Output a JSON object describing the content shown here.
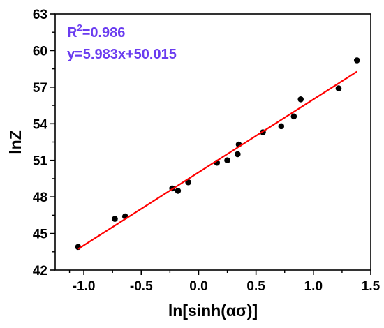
{
  "chart_data": {
    "type": "scatter",
    "xlabel": "ln[sinh(ασ)]",
    "ylabel": "lnZ",
    "xlim": [
      -1.25,
      1.5
    ],
    "ylim": [
      42,
      63
    ],
    "xticks": [
      -1.0,
      -0.5,
      0.0,
      0.5,
      1.0,
      1.5
    ],
    "xtick_labels": [
      "-1.0",
      "-0.5",
      "0.0",
      "0.5",
      "1.0",
      "1.5"
    ],
    "yticks": [
      42,
      45,
      48,
      51,
      54,
      57,
      60,
      63
    ],
    "ytick_labels": [
      "42",
      "45",
      "48",
      "51",
      "54",
      "57",
      "60",
      "63"
    ],
    "grid": false,
    "points": [
      {
        "x": -1.05,
        "y": 43.9
      },
      {
        "x": -0.73,
        "y": 46.2
      },
      {
        "x": -0.64,
        "y": 46.4
      },
      {
        "x": -0.23,
        "y": 48.7
      },
      {
        "x": -0.18,
        "y": 48.5
      },
      {
        "x": -0.09,
        "y": 49.2
      },
      {
        "x": 0.16,
        "y": 50.8
      },
      {
        "x": 0.25,
        "y": 51.0
      },
      {
        "x": 0.34,
        "y": 51.5
      },
      {
        "x": 0.35,
        "y": 52.3
      },
      {
        "x": 0.56,
        "y": 53.3
      },
      {
        "x": 0.72,
        "y": 53.8
      },
      {
        "x": 0.83,
        "y": 54.6
      },
      {
        "x": 0.89,
        "y": 56.0
      },
      {
        "x": 1.22,
        "y": 56.9
      },
      {
        "x": 1.38,
        "y": 59.2
      }
    ],
    "fit": {
      "slope": 5.983,
      "intercept": 50.015,
      "x_range": [
        -1.05,
        1.38
      ]
    },
    "annotations": {
      "r2_prefix": "R",
      "r2_sup": "2",
      "r2_value": "=0.986",
      "equation": "y=5.983x+50.015"
    },
    "colors": {
      "points": "#000000",
      "fit_line": "#ff0000",
      "annotation": "#6a3cf0"
    }
  }
}
